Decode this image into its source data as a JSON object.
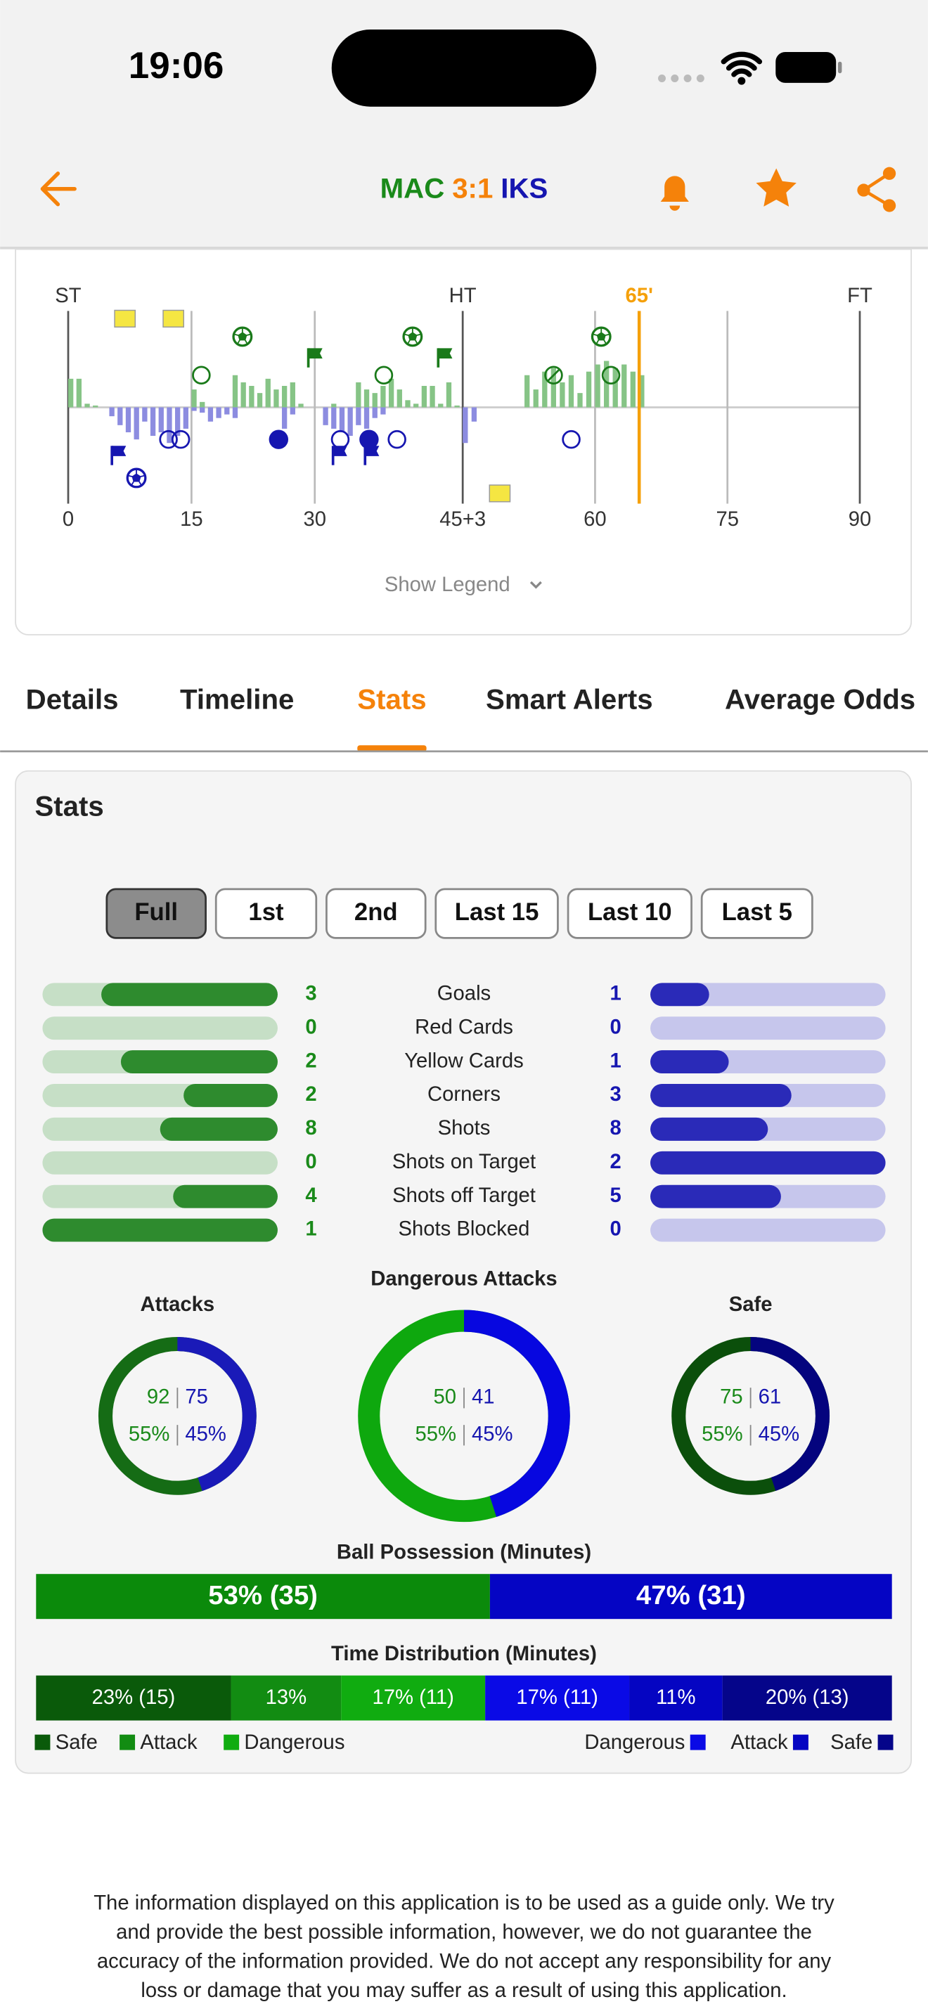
{
  "status_bar": {
    "time": "19:06"
  },
  "header": {
    "home": "MAC",
    "score": "3:1",
    "away": "IKS"
  },
  "timeline": {
    "type": "bar",
    "markers": {
      "start": "ST",
      "half": "HT",
      "now": "65'",
      "end": "FT"
    },
    "xlim": [
      0,
      93
    ],
    "xticks": [
      0,
      15,
      30,
      {
        "value": 48,
        "label": "45+3"
      },
      {
        "value": 63,
        "label": "60"
      },
      {
        "value": 78,
        "label": "75"
      },
      {
        "value": 93,
        "label": "90"
      }
    ],
    "half_at": 48,
    "now_at": 68,
    "ylim": [
      -36,
      36
    ],
    "home": {
      "color": "#86c486",
      "values": [
        16,
        16,
        2,
        1,
        0,
        0,
        0,
        0,
        0,
        0,
        0,
        0,
        0,
        0,
        0,
        10,
        3,
        0,
        0,
        0,
        18,
        14,
        12,
        8,
        16,
        10,
        12,
        14,
        2,
        0,
        0,
        0,
        2,
        0,
        0,
        14,
        10,
        8,
        12,
        16,
        10,
        4,
        2,
        12,
        12,
        2,
        14,
        1,
        0,
        0,
        0,
        0,
        0,
        0,
        0,
        18,
        10,
        20,
        22,
        14,
        18,
        8,
        20,
        24,
        26,
        22,
        24,
        20,
        18
      ]
    },
    "away": {
      "color": "#8c8ce0",
      "values": [
        0,
        0,
        0,
        0,
        0,
        5,
        10,
        14,
        18,
        8,
        16,
        14,
        20,
        16,
        12,
        2,
        3,
        8,
        6,
        4,
        6,
        0,
        0,
        0,
        0,
        0,
        12,
        4,
        0,
        0,
        0,
        10,
        12,
        14,
        16,
        10,
        12,
        6,
        4,
        0,
        0,
        0,
        0,
        0,
        0,
        0,
        0,
        0,
        20,
        8,
        0,
        0,
        0,
        0,
        0,
        0,
        0,
        0,
        0,
        0,
        0,
        0,
        0,
        0,
        0,
        0,
        0,
        0,
        0
      ]
    },
    "home_events": [
      {
        "minute": 6.9,
        "icon": "card"
      },
      {
        "minute": 12.8,
        "icon": "card"
      },
      {
        "minute": 21.2,
        "icon": "goal"
      },
      {
        "minute": 41.9,
        "icon": "goal"
      },
      {
        "minute": 63.7,
        "icon": "goal"
      },
      {
        "minute": 30,
        "icon": "corner"
      },
      {
        "minute": 45.8,
        "icon": "corner"
      },
      {
        "minute": 16.2,
        "icon": "shot"
      },
      {
        "minute": 38.4,
        "icon": "shot"
      },
      {
        "minute": 58.3,
        "icon": "blocked"
      },
      {
        "minute": 64.8,
        "icon": "shot"
      }
    ],
    "away_events": [
      {
        "minute": 6.1,
        "icon": "corner"
      },
      {
        "minute": 33,
        "icon": "corner"
      },
      {
        "minute": 36.9,
        "icon": "corner"
      },
      {
        "minute": 8.3,
        "icon": "goal"
      },
      {
        "minute": 25.6,
        "icon": "on-target"
      },
      {
        "minute": 36.6,
        "icon": "on-target"
      },
      {
        "minute": 12.2,
        "icon": "shot"
      },
      {
        "minute": 13.7,
        "icon": "shot"
      },
      {
        "minute": 33.1,
        "icon": "shot"
      },
      {
        "minute": 40,
        "icon": "shot"
      },
      {
        "minute": 60.3,
        "icon": "shot"
      },
      {
        "minute": 52.2,
        "icon": "card"
      }
    ],
    "legend_toggle": "Show Legend"
  },
  "tabs": {
    "items": [
      "Details",
      "Timeline",
      "Stats",
      "Smart Alerts",
      "Average Odds"
    ],
    "active": 2
  },
  "stats": {
    "title": "Stats",
    "periods": [
      "Full",
      "1st",
      "2nd",
      "Last 15",
      "Last 10",
      "Last 5"
    ],
    "active_period": 0,
    "rows": [
      {
        "label": "Goals",
        "home": 3,
        "away": 1
      },
      {
        "label": "Red Cards",
        "home": 0,
        "away": 0
      },
      {
        "label": "Yellow Cards",
        "home": 2,
        "away": 1
      },
      {
        "label": "Corners",
        "home": 2,
        "away": 3
      },
      {
        "label": "Shots",
        "home": 8,
        "away": 8
      },
      {
        "label": "Shots on Target",
        "home": 0,
        "away": 2
      },
      {
        "label": "Shots off Target",
        "home": 4,
        "away": 5
      },
      {
        "label": "Shots Blocked",
        "home": 1,
        "away": 0
      }
    ],
    "donuts": [
      {
        "title": "Attacks",
        "home": 92,
        "away": 75,
        "home_pct": "55%",
        "away_pct": "45%",
        "colors": [
          "#156c15",
          "#1a1ab8"
        ]
      },
      {
        "title": "Dangerous Attacks",
        "home": 50,
        "away": 41,
        "home_pct": "55%",
        "away_pct": "45%",
        "colors": [
          "#0ea80e",
          "#0707e0"
        ]
      },
      {
        "title": "Safe",
        "home": 75,
        "away": 61,
        "home_pct": "55%",
        "away_pct": "45%",
        "colors": [
          "#0b4f0b",
          "#04047e"
        ]
      }
    ],
    "possession": {
      "title": "Ball Possession (Minutes)",
      "home": {
        "minutes": 35,
        "label": "53% (35)",
        "color": "#0b8a0b"
      },
      "away": {
        "minutes": 31,
        "label": "47% (31)",
        "color": "#0505c4"
      }
    },
    "time_distribution": {
      "title": "Time Distribution (Minutes)",
      "segments": [
        {
          "pct": 23,
          "label": "23% (15)",
          "color": "#0a5a0a"
        },
        {
          "pct": 13,
          "label": "13%",
          "color": "#128c12"
        },
        {
          "pct": 17,
          "label": "17% (11)",
          "color": "#10ac10"
        },
        {
          "pct": 17,
          "label": "17% (11)",
          "color": "#0a0ae6"
        },
        {
          "pct": 11,
          "label": "11%",
          "color": "#0505c2"
        },
        {
          "pct": 20,
          "label": "20% (13)",
          "color": "#05058a"
        }
      ],
      "home_legend": [
        "Safe",
        "Attack",
        "Dangerous"
      ],
      "away_legend": [
        "Dangerous",
        "Attack",
        "Safe"
      ]
    }
  },
  "disclaimer": [
    "The information displayed on this application is to be used as a guide only. We try",
    "and provide the best possible information, however, we do not guarantee the",
    "accuracy of the information provided. We do not accept any responsibility for any",
    "loss or damage that you may suffer as a result of using this application."
  ]
}
